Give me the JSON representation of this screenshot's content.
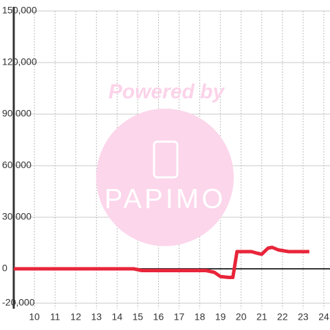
{
  "chart_data": {
    "type": "line",
    "watermark": {
      "line1": "Powered by",
      "line2": "PAPIMO"
    },
    "x": [
      9,
      14.8,
      15.2,
      18.3,
      18.7,
      19.0,
      19.4,
      19.6,
      19.8,
      20.5,
      20.8,
      21.0,
      21.3,
      21.5,
      21.8,
      22.3,
      23.3
    ],
    "series": [
      {
        "color": "#e8253a",
        "values": [
          0,
          0,
          -1000,
          -1000,
          -2000,
          -4500,
          -5000,
          -5000,
          10000,
          10000,
          9000,
          8500,
          12000,
          12500,
          11000,
          10000,
          10000
        ]
      }
    ],
    "xlim": [
      9,
      24.3
    ],
    "xticks": [
      10,
      11,
      12,
      13,
      14,
      15,
      16,
      17,
      18,
      19,
      20,
      21,
      22,
      23,
      24
    ],
    "ylim": [
      -20000,
      150000
    ],
    "yticks": [
      {
        "value": -20000,
        "label": "-20,000"
      },
      0,
      {
        "value": 30000,
        "label": "30,000"
      },
      {
        "value": 60000,
        "label": "60,000"
      },
      {
        "value": 90000,
        "label": "90,000"
      },
      {
        "value": 120000,
        "label": "120,000"
      },
      {
        "value": 150000,
        "label": "150,000"
      }
    ],
    "grid": true
  }
}
